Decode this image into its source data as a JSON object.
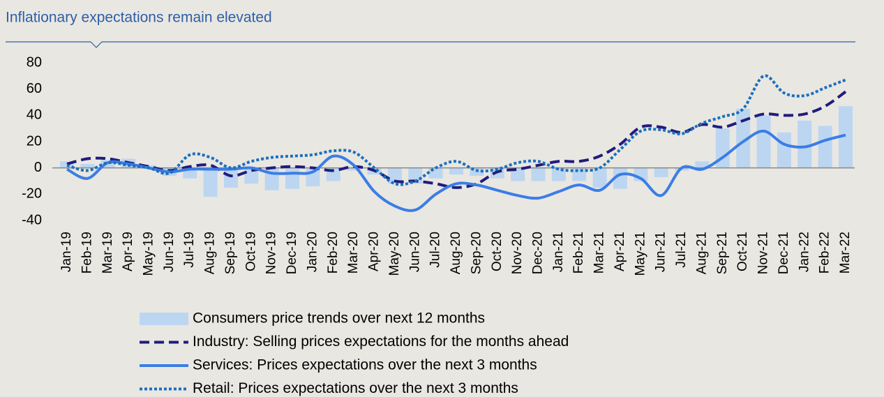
{
  "chart_data": {
    "type": "line",
    "title": "Inflationary expectations remain elevated",
    "categories": [
      "Jan-19",
      "Feb-19",
      "Mar-19",
      "Apr-19",
      "May-19",
      "Jun-19",
      "Jul-19",
      "Aug-19",
      "Sep-19",
      "Oct-19",
      "Nov-19",
      "Dec-19",
      "Jan-20",
      "Feb-20",
      "Mar-20",
      "Apr-20",
      "May-20",
      "Jun-20",
      "Jul-20",
      "Aug-20",
      "Sep-20",
      "Oct-20",
      "Nov-20",
      "Dec-20",
      "Jan-21",
      "Feb-21",
      "Mar-21",
      "Apr-21",
      "May-21",
      "Jun-21",
      "Jul-21",
      "Aug-21",
      "Sep-21",
      "Oct-21",
      "Nov-21",
      "Dec-21",
      "Jan-22",
      "Feb-22",
      "Mar-22"
    ],
    "series": [
      {
        "name": "Consumers price trends over next 12 months",
        "type": "bar",
        "color": "#bcd6f1",
        "values": [
          5,
          3,
          6,
          7,
          2,
          -6,
          -8,
          -22,
          -15,
          -12,
          -17,
          -16,
          -14,
          -10,
          -2,
          -5,
          -12,
          -12,
          -8,
          -5,
          -6,
          -8,
          -10,
          -10,
          -10,
          -10,
          -15,
          -16,
          -10,
          -7,
          -2,
          5,
          30,
          45,
          40,
          27,
          36,
          32,
          47
        ]
      },
      {
        "name": "Industry: Selling prices expectations for the months ahead",
        "type": "line",
        "dash": "dashed",
        "color": "#211c7c",
        "values": [
          3,
          7,
          7,
          4,
          1,
          -2,
          1,
          2,
          -6,
          -2,
          0,
          1,
          0,
          -2,
          1,
          -2,
          -10,
          -10,
          -12,
          -15,
          -12,
          -3,
          -1,
          2,
          5,
          5,
          9,
          18,
          31,
          31,
          27,
          33,
          31,
          36,
          41,
          40,
          41,
          47,
          58
        ]
      },
      {
        "name": "Services: Prices expectations over the next 3 months",
        "type": "line",
        "dash": "solid",
        "color": "#3b7de6",
        "values": [
          -1,
          -8,
          4,
          3,
          0,
          -3,
          -1,
          -1,
          -1,
          0,
          -4,
          -4,
          -3,
          9,
          2,
          -18,
          -29,
          -32,
          -20,
          -12,
          -13,
          -17,
          -21,
          -23,
          -18,
          -13,
          -17,
          -5,
          -8,
          -21,
          0,
          -1,
          8,
          20,
          28,
          18,
          16,
          21,
          25
        ]
      },
      {
        "name": "Retail: Prices expectations over the next 3 months",
        "type": "line",
        "dash": "dotted",
        "color": "#1b70bd",
        "values": [
          2,
          -2,
          4,
          2,
          0,
          -4,
          10,
          8,
          0,
          5,
          8,
          9,
          10,
          13,
          12,
          0,
          -12,
          -10,
          0,
          5,
          -2,
          -1,
          4,
          5,
          -1,
          -2,
          0,
          14,
          28,
          29,
          26,
          34,
          39,
          45,
          70,
          57,
          55,
          61,
          67
        ]
      }
    ],
    "ylim": [
      -40,
      80
    ],
    "yticks": [
      -40,
      -20,
      0,
      20,
      40,
      60,
      80
    ],
    "grid": false,
    "legend": "bottom"
  }
}
